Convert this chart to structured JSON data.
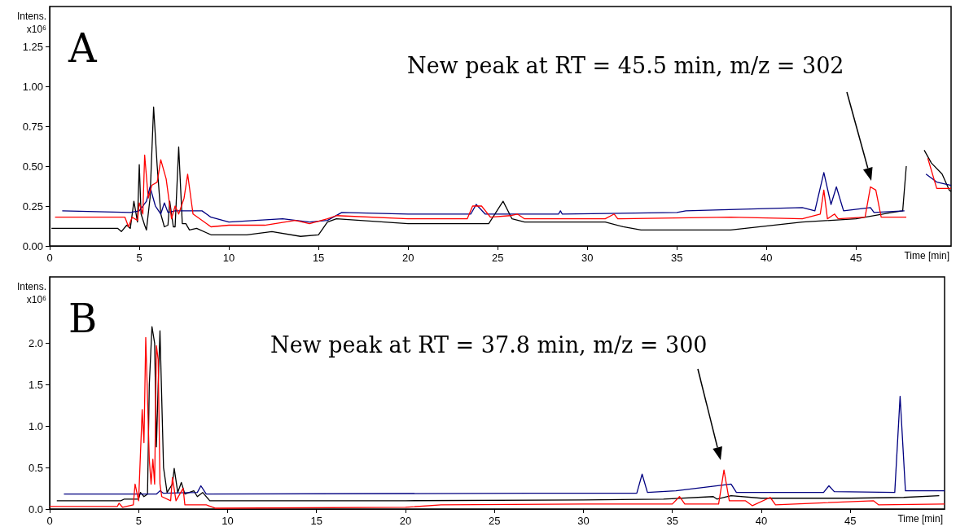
{
  "chart_data": [
    {
      "type": "line",
      "title": "A",
      "xlabel": "Time [min]",
      "ylabel": "Intens. x10⁶",
      "xlim": [
        0,
        50.3
      ],
      "xticks": [
        0,
        5,
        10,
        15,
        20,
        25,
        30,
        35,
        40,
        45
      ],
      "ylim": [
        0,
        1.5
      ],
      "yticks": [
        {
          "value": 0,
          "label": "0.00"
        },
        {
          "value": 0.25,
          "label": "0.25"
        },
        {
          "value": 0.5,
          "label": "0.50"
        },
        {
          "value": 0.75,
          "label": "0.75"
        },
        {
          "value": 1,
          "label": "1.00"
        },
        {
          "value": 1.25,
          "label": "1.25"
        }
      ],
      "annotations": [
        "New peak at RT = 45.5 min, m/z = 302"
      ],
      "series": [
        {
          "color": "#000000",
          "x": [
            0.1,
            3.8,
            4.0,
            4.3,
            4.5,
            4.7,
            4.9,
            5.0,
            5.1,
            5.3,
            5.4,
            5.6,
            5.8,
            6.0,
            6.2,
            6.4,
            6.6,
            6.7,
            6.9,
            7.0,
            7.2,
            7.4,
            7.6,
            7.8,
            8.2,
            9,
            11,
            12.4,
            14,
            15,
            15.5,
            16,
            20,
            24.5,
            25.3,
            25.8,
            26.5,
            31,
            32,
            33,
            38,
            42,
            45,
            47,
            47.6,
            47.8,
            48,
            48.6,
            48.8,
            49.2,
            49.8,
            50.2,
            50.3
          ],
          "values": [
            0.11,
            0.11,
            0.09,
            0.13,
            0.11,
            0.28,
            0.15,
            0.51,
            0.2,
            0.13,
            0.1,
            0.3,
            0.87,
            0.5,
            0.2,
            0.12,
            0.13,
            0.28,
            0.12,
            0.12,
            0.62,
            0.14,
            0.14,
            0.1,
            0.11,
            0.07,
            0.07,
            0.09,
            0.06,
            0.07,
            0.15,
            0.17,
            0.14,
            0.14,
            0.28,
            0.17,
            0.15,
            0.15,
            0.12,
            0.1,
            0.1,
            0.15,
            0.17,
            0.21,
            0.22,
            0.5,
            null,
            null,
            0.6,
            0.52,
            0.45,
            0.35,
            0.34
          ]
        },
        {
          "color": "#000080",
          "x": [
            0.7,
            4.5,
            5.0,
            5.4,
            5.6,
            5.9,
            6.2,
            6.4,
            6.6,
            7,
            8.5,
            9,
            10,
            13,
            14.5,
            15.5,
            16.3,
            20,
            23.5,
            23.8,
            24.3,
            28.4,
            28.5,
            28.6,
            35,
            35.5,
            38.7,
            42,
            42.7,
            43.2,
            43.6,
            43.9,
            44.3,
            45.8,
            46,
            47.7,
            47.9,
            48.6,
            48.9,
            49.5,
            50.3
          ],
          "values": [
            0.22,
            0.21,
            0.22,
            0.28,
            0.37,
            0.25,
            0.2,
            0.27,
            0.21,
            0.22,
            0.22,
            0.18,
            0.15,
            0.17,
            0.15,
            0.16,
            0.21,
            0.2,
            0.2,
            0.26,
            0.2,
            0.2,
            0.22,
            0.2,
            0.21,
            0.22,
            0.23,
            0.24,
            0.22,
            0.46,
            0.26,
            0.37,
            0.22,
            0.24,
            0.21,
            0.22,
            null,
            null,
            0.45,
            0.4,
            0.38
          ]
        },
        {
          "color": "#ff0000",
          "x": [
            0.3,
            4.2,
            4.4,
            4.6,
            4.9,
            5.0,
            5.2,
            5.3,
            5.5,
            5.7,
            6.0,
            6.2,
            6.5,
            6.8,
            7.0,
            7.2,
            7.5,
            7.7,
            8.0,
            9,
            10,
            12,
            13.7,
            14.5,
            15.5,
            16,
            20,
            23.3,
            23.6,
            24.1,
            24.6,
            25.7,
            26.1,
            26.5,
            31,
            31.5,
            31.7,
            38,
            42,
            43,
            43.2,
            43.4,
            43.8,
            44,
            45.5,
            45.8,
            46.1,
            46.4,
            47.8,
            48,
            48.8,
            49,
            49.5,
            50.3
          ],
          "values": [
            0.18,
            0.18,
            0.12,
            0.18,
            0.16,
            0.27,
            0.2,
            0.57,
            0.3,
            0.38,
            0.4,
            0.54,
            0.42,
            0.17,
            0.25,
            0.2,
            0.3,
            0.45,
            0.2,
            0.12,
            0.13,
            0.13,
            0.16,
            0.14,
            0.17,
            0.19,
            0.17,
            0.17,
            0.25,
            0.25,
            0.18,
            0.19,
            0.2,
            0.17,
            0.17,
            0.2,
            0.17,
            0.18,
            0.17,
            0.2,
            0.35,
            0.17,
            0.2,
            0.17,
            0.18,
            0.37,
            0.35,
            0.18,
            0.18,
            null,
            null,
            0.55,
            0.36,
            0.36
          ]
        }
      ]
    },
    {
      "type": "line",
      "title": "B",
      "xlabel": "Time [min]",
      "ylabel": "Intens. x10⁶",
      "xlim": [
        0,
        50.3
      ],
      "xticks": [
        0,
        5,
        10,
        15,
        20,
        25,
        30,
        35,
        40,
        45
      ],
      "ylim": [
        0,
        2.8
      ],
      "yticks": [
        {
          "value": 0,
          "label": "0.0"
        },
        0.5,
        {
          "value": 1,
          "label": "1.0"
        },
        1.5,
        {
          "value": 2,
          "label": "2.0"
        }
      ],
      "annotations": [
        "New peak at RT = 37.8 min, m/z = 300"
      ],
      "series": [
        {
          "color": "#000000",
          "x": [
            0.4,
            4,
            4.2,
            5,
            5.1,
            5.3,
            5.5,
            5.6,
            5.75,
            5.9,
            6.0,
            6.1,
            6.2,
            6.4,
            6.6,
            6.9,
            7.0,
            7.2,
            7.4,
            7.6,
            8.1,
            8.3,
            8.6,
            9,
            20,
            30,
            34.5,
            37.3,
            37.5,
            38.3,
            40,
            45,
            48,
            50
          ],
          "values": [
            0.1,
            0.1,
            0.12,
            0.12,
            0.2,
            0.15,
            0.18,
            1.5,
            2.2,
            2.0,
            0.75,
            1.5,
            2.15,
            0.5,
            0.2,
            0.3,
            0.49,
            0.2,
            0.32,
            0.18,
            0.22,
            0.15,
            0.2,
            0.1,
            0.1,
            0.11,
            0.12,
            0.15,
            0.12,
            0.16,
            0.13,
            0.13,
            0.14,
            0.16
          ]
        },
        {
          "color": "#000080",
          "x": [
            0.8,
            6,
            6.2,
            6.4,
            8.3,
            8.5,
            8.8,
            27,
            33,
            33.3,
            33.6,
            35.2,
            38.3,
            38.6,
            43.5,
            43.8,
            44.1,
            47.5,
            47.8,
            48.1,
            50.3
          ],
          "values": [
            0.18,
            0.18,
            0.22,
            0.19,
            0.2,
            0.28,
            0.18,
            0.19,
            0.19,
            0.42,
            0.2,
            0.22,
            0.3,
            0.2,
            0.2,
            0.28,
            0.21,
            0.2,
            1.36,
            0.22,
            0.22
          ]
        },
        {
          "color": "#ff0000",
          "x": [
            0,
            3.8,
            3.9,
            4.1,
            4.7,
            4.8,
            5.0,
            5.2,
            5.3,
            5.4,
            5.6,
            5.7,
            5.8,
            5.9,
            6.0,
            6.1,
            6.2,
            6.3,
            6.8,
            6.9,
            7.1,
            7.5,
            7.6,
            8.8,
            9.3,
            20,
            22,
            30,
            35,
            35.4,
            35.7,
            37.6,
            37.9,
            38.2,
            39.1,
            39.5,
            40.5,
            40.8,
            46.3,
            46.6,
            50.3
          ],
          "values": [
            0.03,
            0.03,
            0.07,
            0.02,
            0.05,
            0.3,
            0.1,
            1.2,
            0.8,
            2.07,
            0.6,
            0.3,
            0.6,
            0.3,
            1.97,
            1.8,
            0.3,
            0.15,
            0.1,
            0.38,
            0.1,
            0.25,
            0.05,
            0.05,
            0.01,
            0.02,
            0.05,
            0.06,
            0.06,
            0.15,
            0.06,
            0.06,
            0.47,
            0.1,
            0.1,
            0.04,
            0.14,
            0.05,
            0.1,
            0.05,
            0.06
          ]
        }
      ]
    }
  ]
}
